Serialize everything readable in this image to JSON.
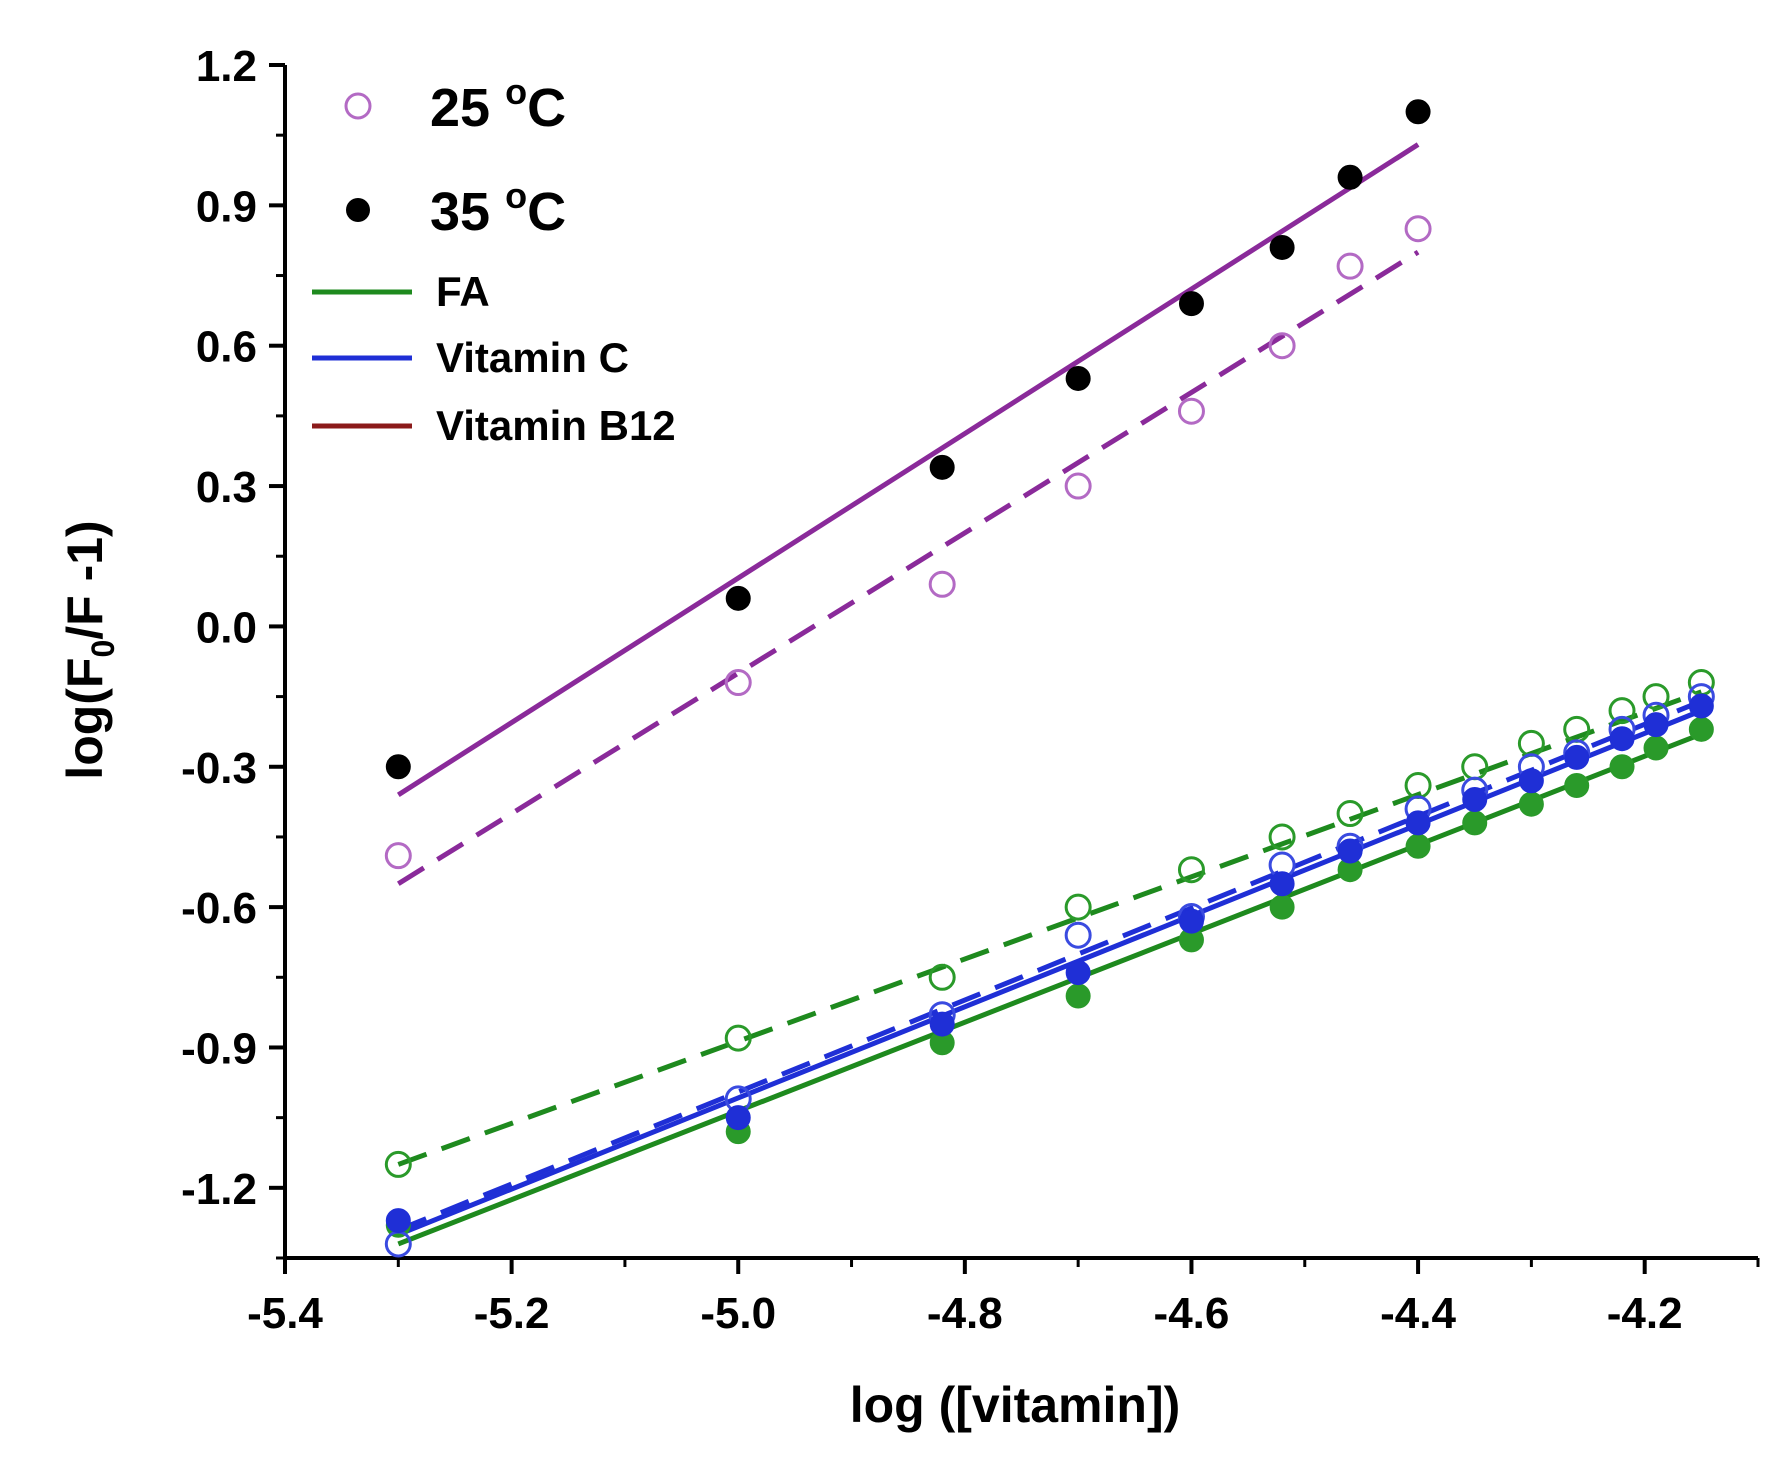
{
  "chart_data": {
    "type": "scatter",
    "title": "",
    "xlabel": "log ([vitamin])",
    "ylabel": {
      "prefix": "log(F",
      "sub": "0",
      "suffix": "/F -1)"
    },
    "xlim": [
      -5.4,
      -4.1
    ],
    "ylim": [
      -1.35,
      1.2
    ],
    "xticks": [
      -5.4,
      -5.2,
      -5.0,
      -4.8,
      -4.6,
      -4.4,
      -4.2
    ],
    "xtick_labels": [
      "-5.4",
      "-5.2",
      "-5.0",
      "-4.8",
      "-4.6",
      "-4.4",
      "-4.2"
    ],
    "yticks": [
      1.2,
      0.9,
      0.6,
      0.3,
      0.0,
      -0.3,
      -0.6,
      -0.9,
      -1.2
    ],
    "ytick_labels": [
      "1.2",
      "0.9",
      "0.6",
      "0.3",
      "0.0",
      "-0.3",
      "-0.6",
      "-0.9",
      "-1.2"
    ],
    "legend": {
      "placement": "top-left",
      "markers": [
        {
          "label": "25",
          "sup": "o",
          "unit": "C",
          "style": "open",
          "color": "#b36ac4"
        },
        {
          "label": "35",
          "sup": "o",
          "unit": "C",
          "style": "filled",
          "color": "#000000"
        }
      ],
      "lines": [
        {
          "label": "FA",
          "color": "#1e8a1e"
        },
        {
          "label": "Vitamin C",
          "color": "#1f2fd6"
        },
        {
          "label": "Vitamin B12",
          "color": "#8b1a1a"
        }
      ]
    },
    "series": [
      {
        "name": "Vitamin B12 25 oC",
        "marker": "open",
        "color": "#b36ac4",
        "line_color": "#8a2a9a",
        "line_style": "dashed",
        "x": [
          -5.3,
          -5.0,
          -4.82,
          -4.7,
          -4.6,
          -4.52,
          -4.46,
          -4.4
        ],
        "y": [
          -0.49,
          -0.12,
          0.09,
          0.3,
          0.46,
          0.6,
          0.77,
          0.85
        ],
        "fit": {
          "x": [
            -5.3,
            -4.4
          ],
          "y": [
            -0.55,
            0.8
          ]
        }
      },
      {
        "name": "Vitamin B12 35 oC",
        "marker": "filled",
        "color": "#000000",
        "line_color": "#8a2a9a",
        "line_style": "solid",
        "x": [
          -5.3,
          -5.0,
          -4.82,
          -4.7,
          -4.6,
          -4.52,
          -4.46,
          -4.4
        ],
        "y": [
          -0.3,
          0.06,
          0.34,
          0.53,
          0.69,
          0.81,
          0.96,
          1.1
        ],
        "fit": {
          "x": [
            -5.3,
            -4.4
          ],
          "y": [
            -0.36,
            1.03
          ]
        }
      },
      {
        "name": "FA 25 oC",
        "marker": "open",
        "color": "#2a9a2a",
        "line_color": "#1e8a1e",
        "line_style": "dashed",
        "x": [
          -5.3,
          -5.0,
          -4.82,
          -4.7,
          -4.6,
          -4.52,
          -4.46,
          -4.4,
          -4.35,
          -4.3,
          -4.26,
          -4.22,
          -4.19,
          -4.15
        ],
        "y": [
          -1.15,
          -0.88,
          -0.75,
          -0.6,
          -0.52,
          -0.45,
          -0.4,
          -0.34,
          -0.3,
          -0.25,
          -0.22,
          -0.18,
          -0.15,
          -0.12
        ],
        "fit": {
          "x": [
            -5.3,
            -4.15
          ],
          "y": [
            -1.15,
            -0.14
          ]
        }
      },
      {
        "name": "FA 35 oC",
        "marker": "filled",
        "color": "#2a9a2a",
        "line_color": "#1e8a1e",
        "line_style": "solid",
        "x": [
          -5.3,
          -5.0,
          -4.82,
          -4.7,
          -4.6,
          -4.52,
          -4.46,
          -4.4,
          -4.35,
          -4.3,
          -4.26,
          -4.22,
          -4.19,
          -4.15
        ],
        "y": [
          -1.28,
          -1.08,
          -0.89,
          -0.79,
          -0.67,
          -0.6,
          -0.52,
          -0.47,
          -0.42,
          -0.38,
          -0.34,
          -0.3,
          -0.26,
          -0.22
        ],
        "fit": {
          "x": [
            -5.3,
            -4.15
          ],
          "y": [
            -1.32,
            -0.23
          ]
        }
      },
      {
        "name": "Vitamin C 25 oC",
        "marker": "open",
        "color": "#3a4be0",
        "line_color": "#1f2fd6",
        "line_style": "dashed",
        "x": [
          -5.3,
          -5.0,
          -4.82,
          -4.7,
          -4.6,
          -4.52,
          -4.46,
          -4.4,
          -4.35,
          -4.3,
          -4.26,
          -4.22,
          -4.19,
          -4.15
        ],
        "y": [
          -1.32,
          -1.01,
          -0.83,
          -0.66,
          -0.62,
          -0.51,
          -0.47,
          -0.39,
          -0.35,
          -0.3,
          -0.27,
          -0.22,
          -0.19,
          -0.15
        ],
        "fit": {
          "x": [
            -5.3,
            -4.15
          ],
          "y": [
            -1.29,
            -0.16
          ]
        }
      },
      {
        "name": "Vitamin C 35 oC",
        "marker": "filled",
        "color": "#1f2fd6",
        "line_color": "#1f2fd6",
        "line_style": "solid",
        "x": [
          -5.3,
          -5.0,
          -4.82,
          -4.7,
          -4.6,
          -4.52,
          -4.46,
          -4.4,
          -4.35,
          -4.3,
          -4.26,
          -4.22,
          -4.19,
          -4.15
        ],
        "y": [
          -1.27,
          -1.05,
          -0.85,
          -0.74,
          -0.63,
          -0.55,
          -0.48,
          -0.42,
          -0.37,
          -0.33,
          -0.28,
          -0.24,
          -0.21,
          -0.17
        ],
        "fit": {
          "x": [
            -5.3,
            -4.15
          ],
          "y": [
            -1.3,
            -0.18
          ]
        }
      }
    ]
  }
}
